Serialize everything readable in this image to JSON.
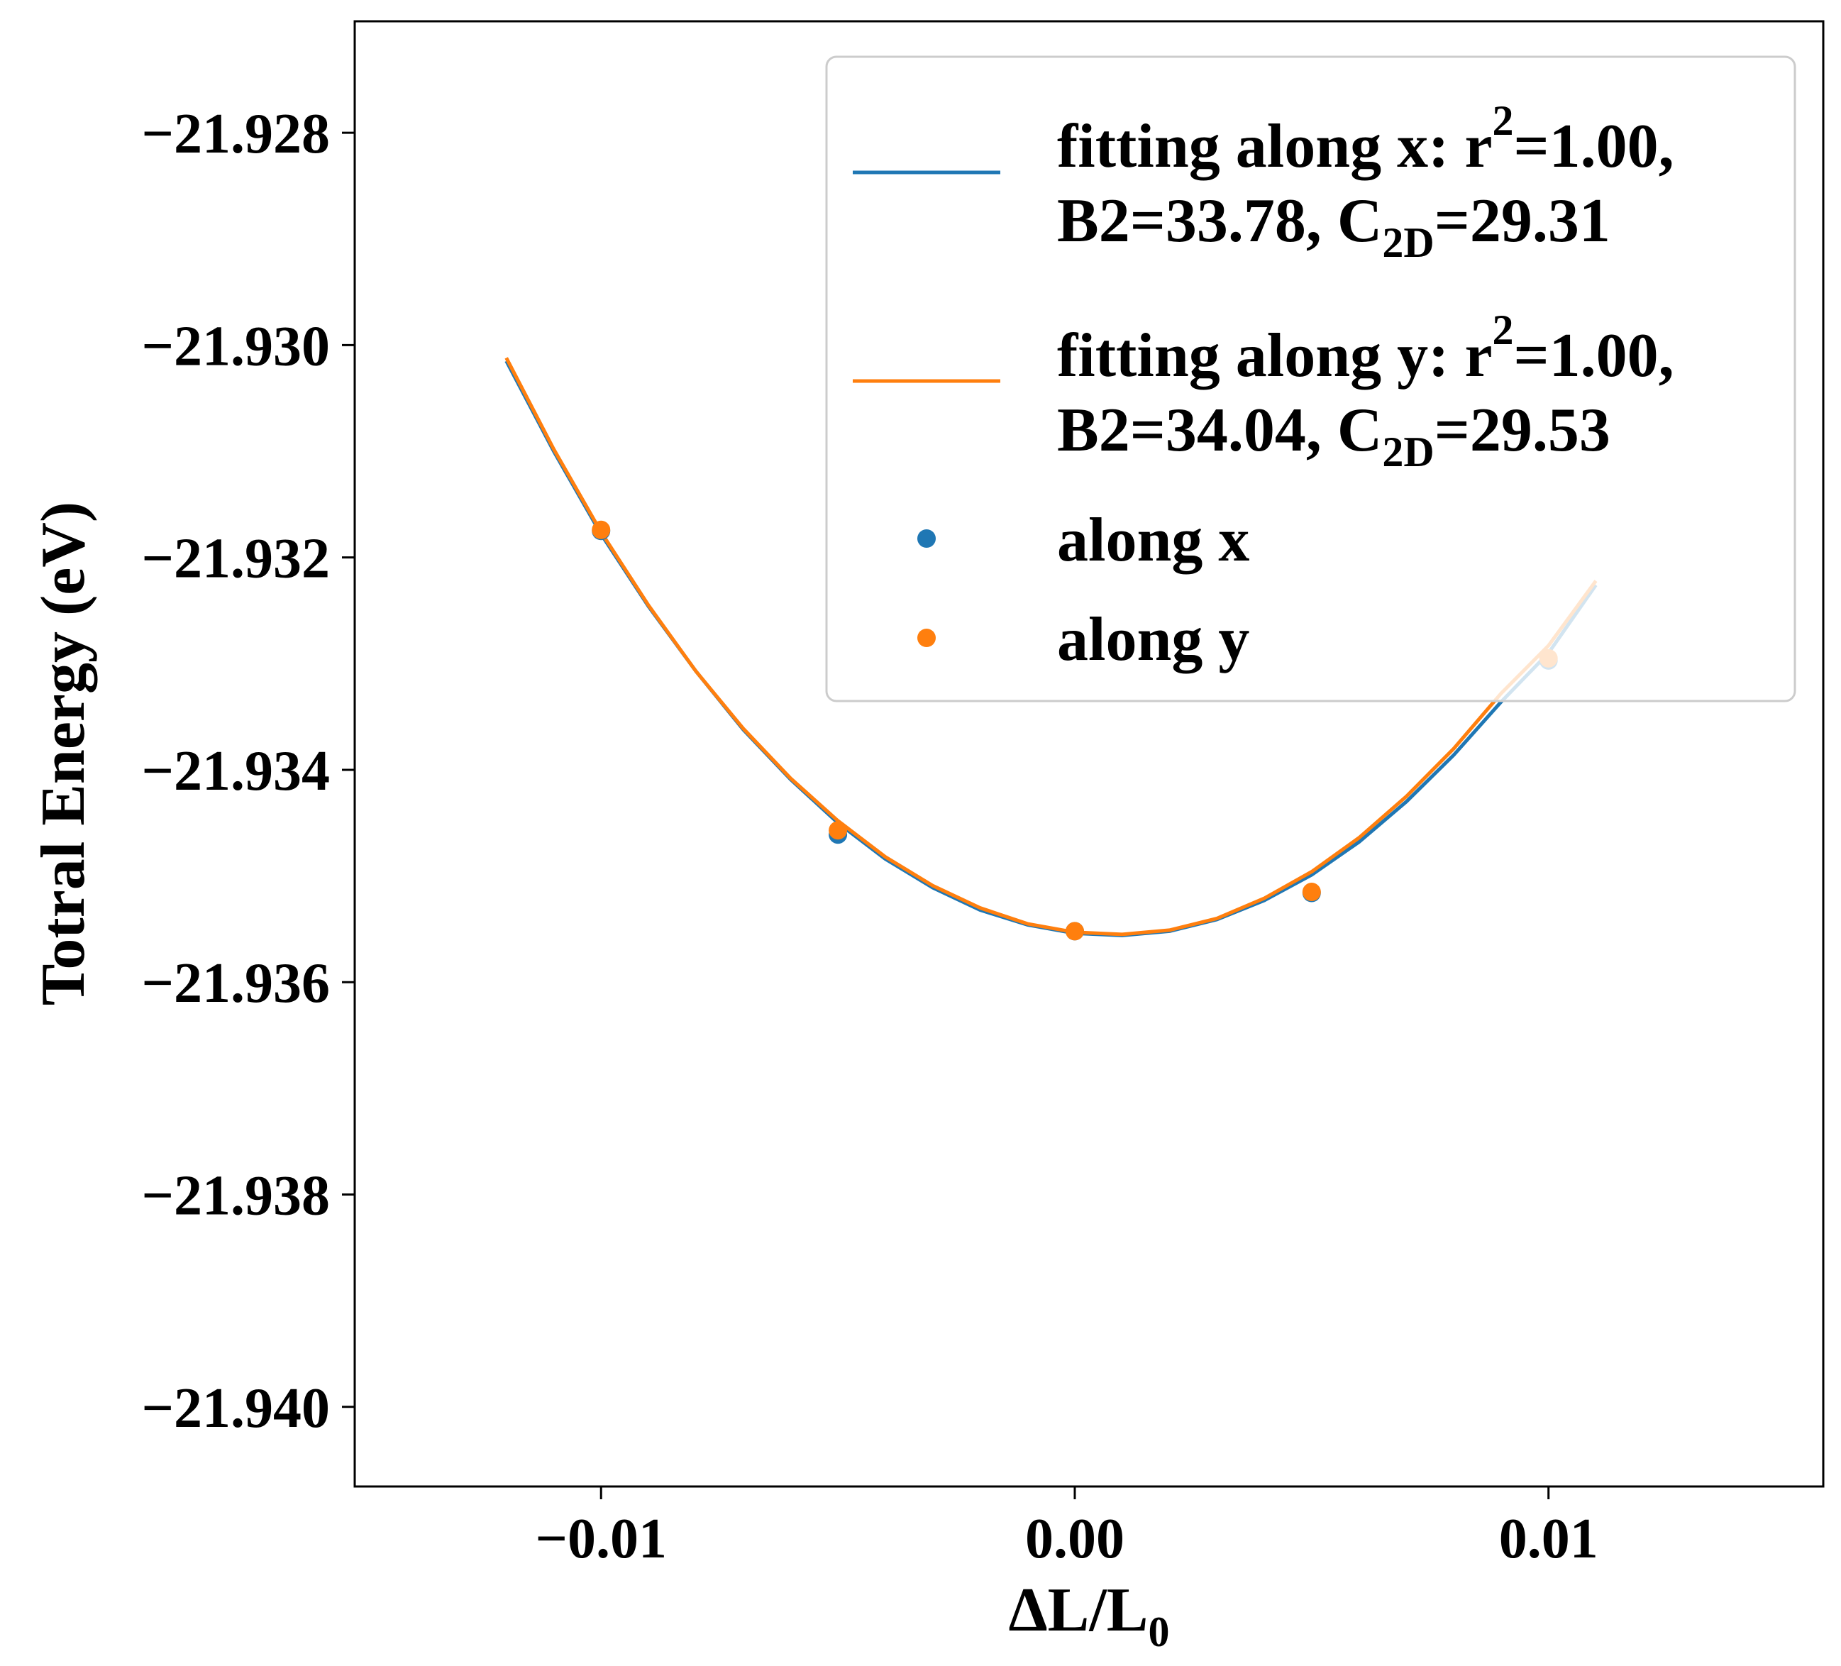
{
  "chart_data": {
    "type": "scatter",
    "xlabel": "ΔL/L",
    "xlabel_sub": "0",
    "ylabel": "Totral Energy (eV)",
    "xlim": [
      -0.0152,
      0.0158
    ],
    "ylim": [
      -21.94075,
      -21.92695
    ],
    "xticks": [
      -0.01,
      0.0,
      0.01
    ],
    "xtick_labels": [
      "−0.01",
      "0.00",
      "0.01"
    ],
    "yticks": [
      -21.928,
      -21.93,
      -21.932,
      -21.934,
      -21.936,
      -21.938,
      -21.94
    ],
    "ytick_labels": [
      "−21.928",
      "−21.930",
      "−21.932",
      "−21.934",
      "−21.936",
      "−21.938",
      "−21.940"
    ],
    "grid": false,
    "legend_position": "top-right",
    "series": [
      {
        "name": "fitting along x",
        "kind": "line",
        "color": "#1f77b4",
        "x": [
          -0.012,
          -0.011,
          -0.01,
          -0.009,
          -0.008,
          -0.007,
          -0.006,
          -0.005,
          -0.004,
          -0.003,
          -0.002,
          -0.001,
          0.0,
          0.001,
          0.002,
          0.003,
          0.004,
          0.005,
          0.006,
          0.007,
          0.008,
          0.009,
          0.01,
          0.011
        ],
        "y": [
          -21.93015,
          -21.931,
          -21.93178,
          -21.93246,
          -21.93307,
          -21.93362,
          -21.93409,
          -21.9345,
          -21.93484,
          -21.93511,
          -21.93532,
          -21.93546,
          -21.93554,
          -21.93556,
          -21.93552,
          -21.93541,
          -21.93523,
          -21.93499,
          -21.93468,
          -21.9343,
          -21.93386,
          -21.93336,
          -21.9329,
          -21.93226
        ]
      },
      {
        "name": "fitting along y",
        "kind": "line",
        "color": "#ff7f0e",
        "x": [
          -0.012,
          -0.011,
          -0.01,
          -0.009,
          -0.008,
          -0.007,
          -0.006,
          -0.005,
          -0.004,
          -0.003,
          -0.002,
          -0.001,
          0.0,
          0.001,
          0.002,
          0.003,
          0.004,
          0.005,
          0.006,
          0.007,
          0.008,
          0.009,
          0.01,
          0.011
        ],
        "y": [
          -21.93012,
          -21.93098,
          -21.93176,
          -21.93245,
          -21.93307,
          -21.93361,
          -21.93408,
          -21.93448,
          -21.93482,
          -21.93509,
          -21.9353,
          -21.93545,
          -21.93553,
          -21.93555,
          -21.93551,
          -21.9354,
          -21.93521,
          -21.93496,
          -21.93464,
          -21.93425,
          -21.9338,
          -21.93328,
          -21.93283,
          -21.93222
        ]
      },
      {
        "name": "along x",
        "kind": "points",
        "color": "#1f77b4",
        "x": [
          -0.01,
          -0.005,
          0.0,
          0.005,
          0.01
        ],
        "y": [
          -21.93175,
          -21.93461,
          -21.93552,
          -21.93516,
          -21.93297
        ]
      },
      {
        "name": "along y",
        "kind": "points",
        "color": "#ff7f0e",
        "x": [
          -0.01,
          -0.005,
          0.0,
          0.005,
          0.01
        ],
        "y": [
          -21.93174,
          -21.93457,
          -21.93552,
          -21.93515,
          -21.93295
        ]
      }
    ],
    "legend": [
      {
        "kind": "line",
        "color": "#1f77b4",
        "line1_a": "fitting along x: r",
        "line1_sup": "2",
        "line1_b": "=1.00,",
        "line2_a": "B2=33.78, C",
        "line2_sub": "2D",
        "line2_b": "=29.31"
      },
      {
        "kind": "line",
        "color": "#ff7f0e",
        "line1_a": "fitting along y: r",
        "line1_sup": "2",
        "line1_b": "=1.00,",
        "line2_a": "B2=34.04, C",
        "line2_sub": "2D",
        "line2_b": "=29.53"
      },
      {
        "kind": "point",
        "color": "#1f77b4",
        "label": "along x"
      },
      {
        "kind": "point",
        "color": "#ff7f0e",
        "label": "along y"
      }
    ]
  }
}
